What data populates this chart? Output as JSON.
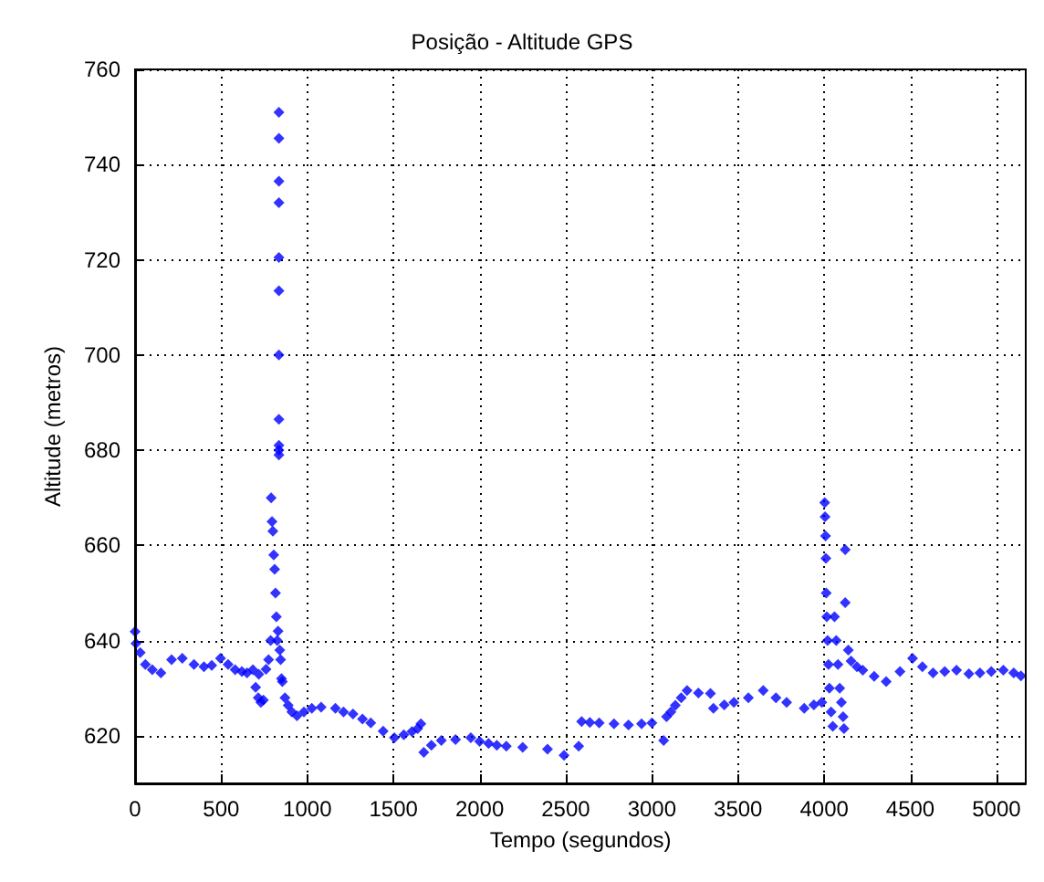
{
  "chart_data": {
    "type": "scatter",
    "title": "Posição - Altitude GPS",
    "xlabel": "Tempo (segundos)",
    "ylabel": "Altitude (metros)",
    "x": [
      0,
      5,
      30,
      60,
      100,
      150,
      212,
      274,
      342,
      400,
      445,
      496,
      540,
      581,
      620,
      650,
      684,
      718,
      700,
      715,
      730,
      745,
      760,
      775,
      787,
      790,
      795,
      800,
      805,
      810,
      815,
      820,
      825,
      830,
      835,
      835,
      835,
      835,
      835,
      835,
      835,
      835,
      835,
      835,
      835,
      840,
      845,
      850,
      855,
      870,
      889,
      910,
      940,
      980,
      1026,
      1080,
      1163,
      1210,
      1265,
      1320,
      1368,
      1440,
      1505,
      1560,
      1607,
      1640,
      1659,
      1676,
      1720,
      1778,
      1860,
      1949,
      2000,
      2052,
      2100,
      2155,
      2250,
      2394,
      2490,
      2575,
      2592,
      2640,
      2694,
      2780,
      2864,
      2940,
      3000,
      3068,
      3085,
      3110,
      3136,
      3170,
      3204,
      3270,
      3340,
      3357,
      3420,
      3476,
      3560,
      3646,
      3720,
      3782,
      3884,
      3940,
      3986,
      4003,
      4005,
      4008,
      4010,
      4012,
      4015,
      4020,
      4025,
      4030,
      4040,
      4050,
      4060,
      4070,
      4080,
      4090,
      4100,
      4110,
      4115,
      4122,
      4122,
      4140,
      4156,
      4190,
      4224,
      4290,
      4360,
      4440,
      4513,
      4570,
      4632,
      4700,
      4768,
      4840,
      4904,
      4970,
      5040,
      5100,
      5142
    ],
    "values": [
      641.9,
      639.4,
      637.5,
      635,
      633.9,
      633.2,
      636,
      636.3,
      635,
      634.5,
      634.8,
      636.3,
      635,
      633.9,
      633.5,
      633.2,
      633.9,
      632.9,
      630.2,
      628,
      627,
      627.5,
      634,
      636,
      640,
      670,
      665,
      663,
      658,
      655,
      650,
      645,
      640,
      642,
      751,
      745.5,
      736.5,
      732,
      720.5,
      713.5,
      700,
      686.5,
      681,
      680,
      679,
      638,
      636,
      632,
      631.4,
      628,
      626.4,
      625,
      624.2,
      625,
      625.8,
      626,
      625.8,
      625,
      624.6,
      623.5,
      622.7,
      621,
      619.6,
      620.2,
      620.9,
      621.5,
      622.5,
      616.5,
      618,
      619,
      619.2,
      619.6,
      618.8,
      618.4,
      618,
      617.8,
      617.6,
      617.2,
      615.9,
      617.8,
      623,
      622.8,
      622.7,
      622.5,
      622.3,
      622.5,
      622.7,
      619,
      624,
      625,
      626.4,
      628,
      629.5,
      629,
      628.9,
      625.8,
      626.5,
      627,
      628,
      629.5,
      628,
      627,
      625.8,
      626.5,
      627,
      669,
      666,
      662,
      657.3,
      650,
      645,
      640,
      635,
      630,
      625,
      622,
      645,
      640,
      635,
      630,
      627,
      624,
      621.5,
      659.1,
      648,
      638,
      635.7,
      634.5,
      633.8,
      632.5,
      631.4,
      633.5,
      636.3,
      634.5,
      633.2,
      633.5,
      633.8,
      633,
      633.2,
      633.5,
      633.8,
      633.2,
      632.6
    ],
    "color": "#0000ff",
    "marker": "diamond",
    "xlim": [
      0,
      5170
    ],
    "ylim": [
      610,
      760
    ],
    "xticks": [
      0,
      500,
      1000,
      1500,
      2000,
      2500,
      3000,
      3500,
      4000,
      4500,
      5000
    ],
    "yticks": [
      620,
      640,
      660,
      680,
      700,
      720,
      740,
      760
    ],
    "grid": true
  }
}
